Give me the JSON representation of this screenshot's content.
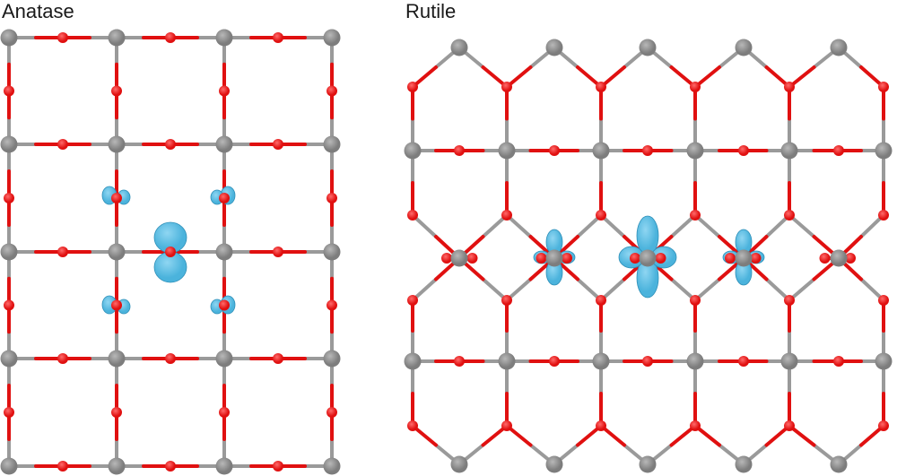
{
  "panels": {
    "anatase": {
      "title": "Anatase"
    },
    "rutile": {
      "title": "Rutile"
    }
  },
  "colors": {
    "ti_atom": "#7d7d7d",
    "o_atom": "#e01010",
    "bond_ti": "#9a9a9a",
    "bond_o": "#e01010",
    "orbital": "#4bb3dc",
    "orbital_edge": "#2e8fb8"
  }
}
